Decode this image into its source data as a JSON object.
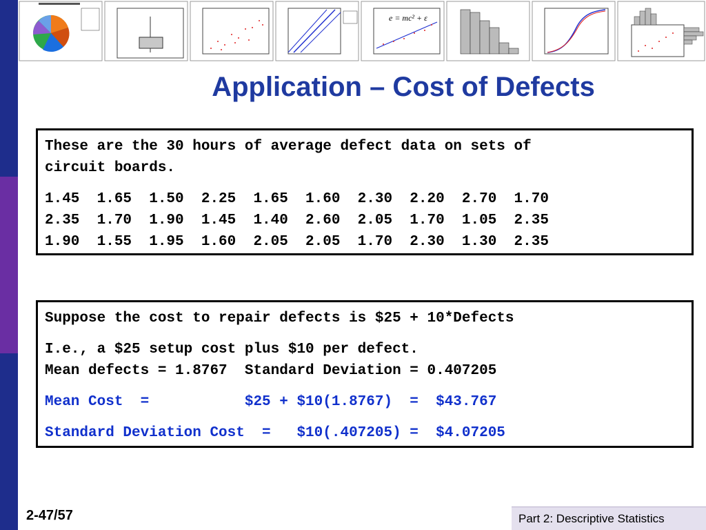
{
  "title": "Application – Cost of Defects",
  "box1": {
    "intro_line1": "These are the 30 hours of average defect data on sets of",
    "intro_line2": "circuit boards.",
    "row1": "1.45  1.65  1.50  2.25  1.65  1.60  2.30  2.20  2.70  1.70",
    "row2": "2.35  1.70  1.90  1.45  1.40  2.60  2.05  1.70  1.05  2.35",
    "row3": "1.90  1.55  1.95  1.60  2.05  2.05  1.70  2.30  1.30  2.35"
  },
  "box2": {
    "line1": "Suppose the cost to repair defects is $25 + 10*Defects",
    "line2": "I.e., a $25 setup cost plus $10 per defect.",
    "line3": "Mean defects = 1.8767  Standard Deviation = 0.407205",
    "line4": "Mean Cost  =           $25 + $10(1.8767)  =  $43.767",
    "line5": "Standard Deviation Cost  =   $10(.407205) =  $4.07205"
  },
  "footer": {
    "page": "2-47/57",
    "section": "Part 2: Descriptive Statistics"
  },
  "colors": {
    "title": "#1f3aa0",
    "highlight": "#1030cc",
    "sidebar_blue": "#1e2d8c",
    "sidebar_purple": "#6a2ea3"
  }
}
